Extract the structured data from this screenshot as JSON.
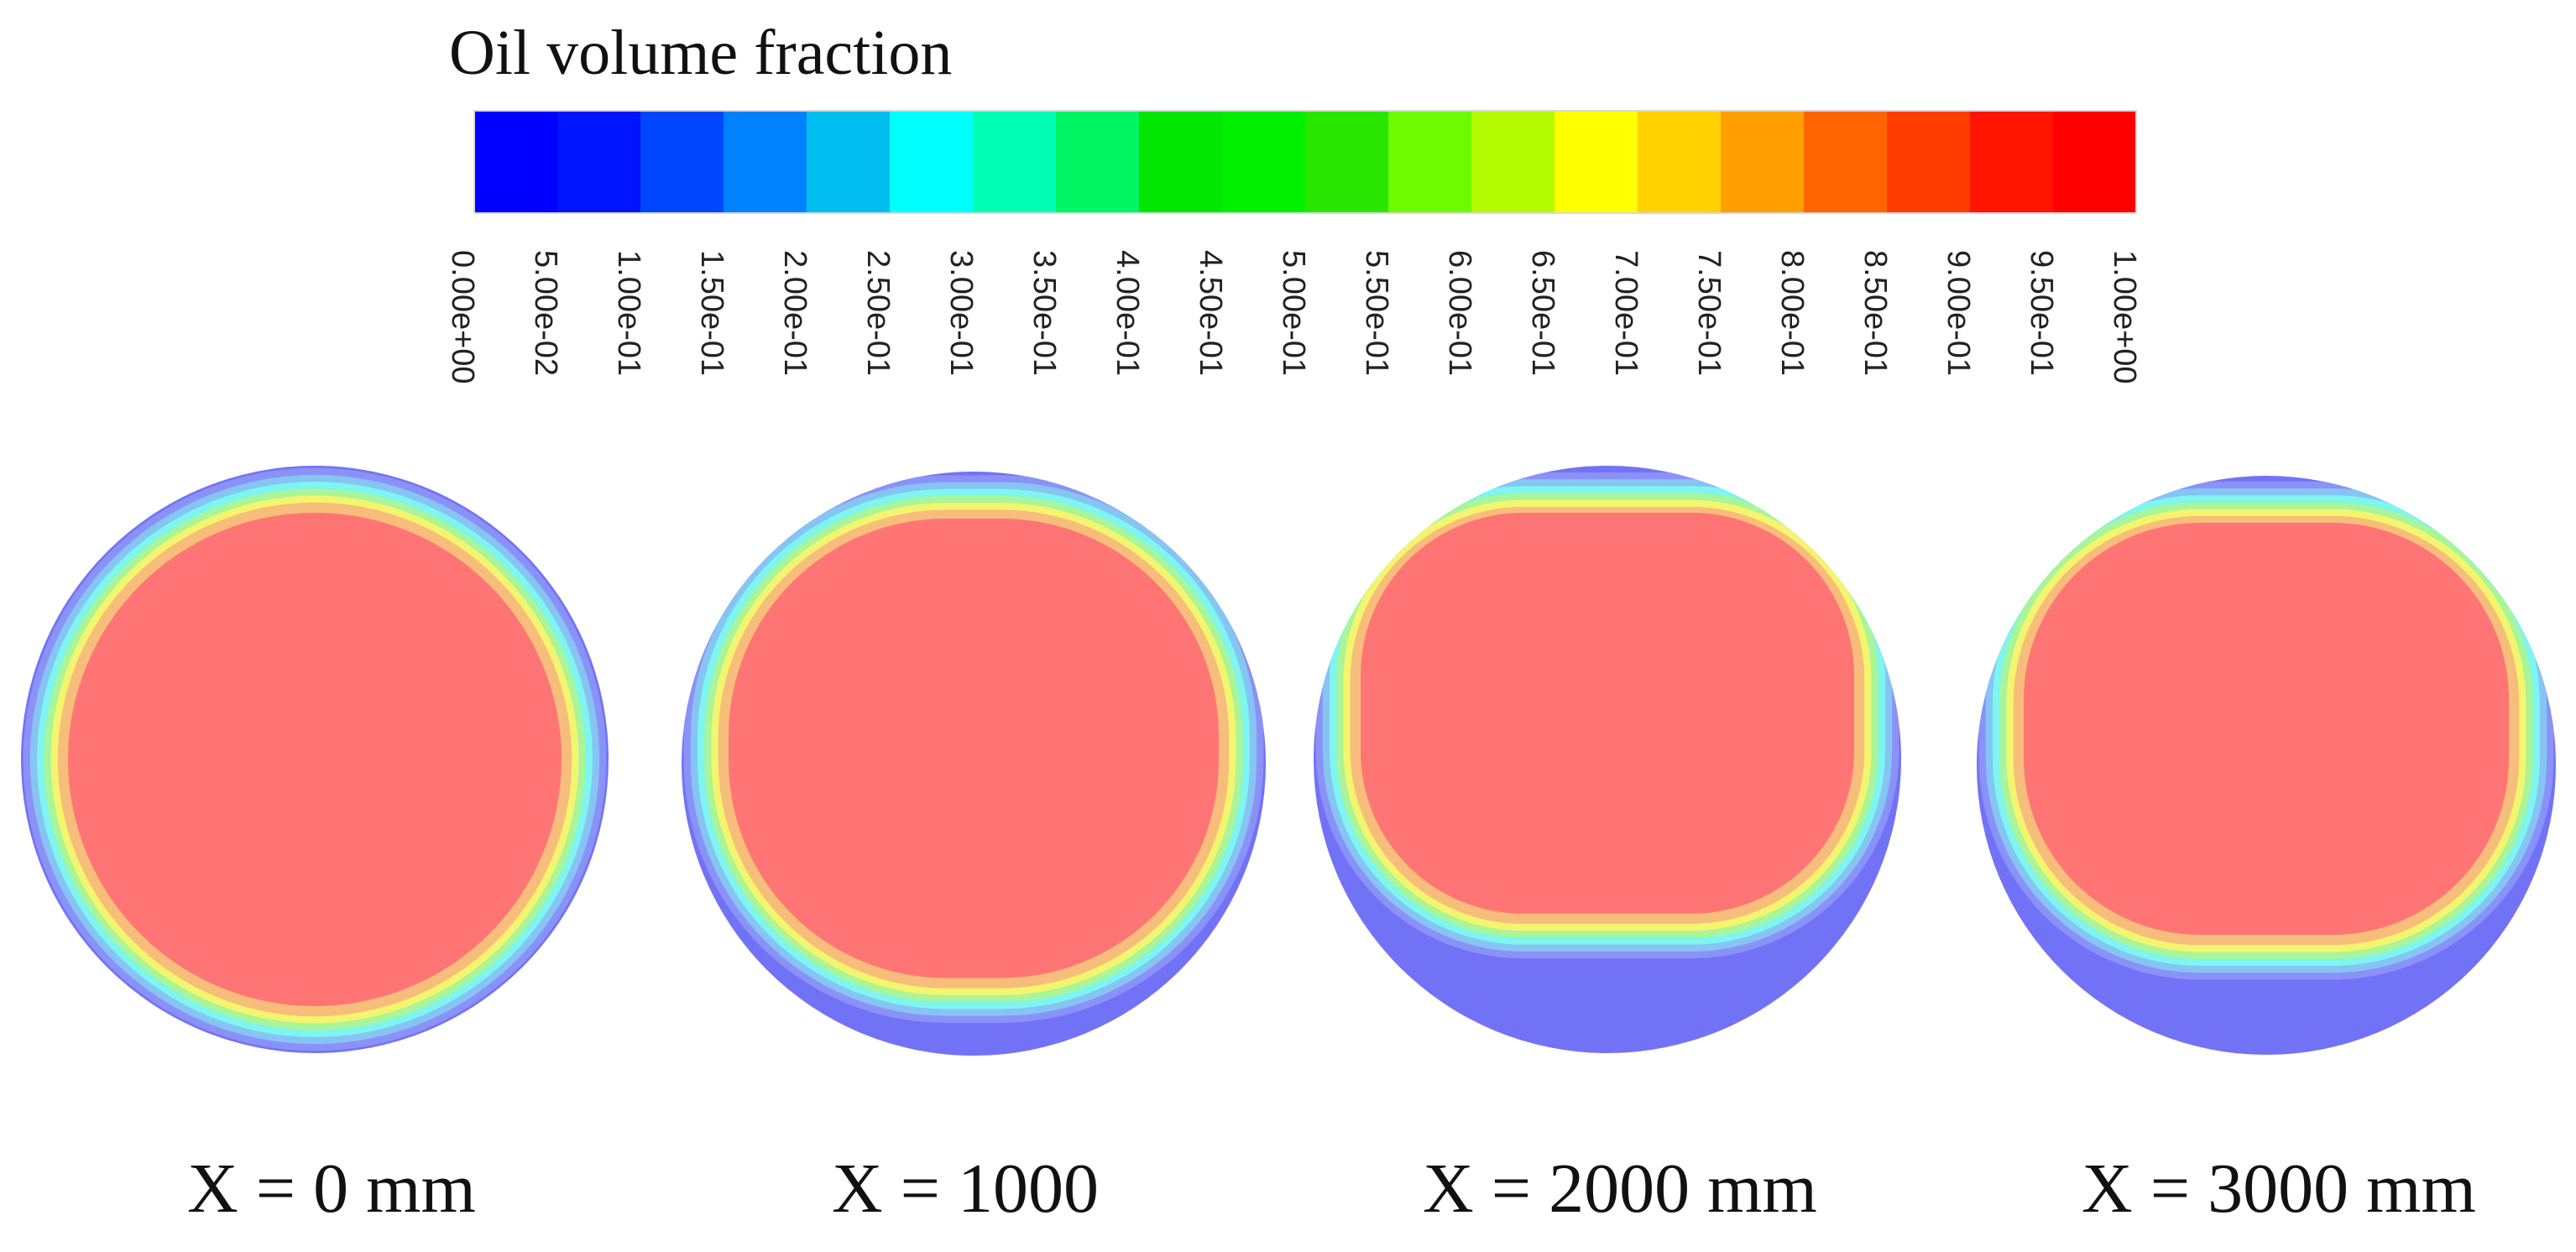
{
  "legend": {
    "title": "Oil volume fraction",
    "colors": [
      "#0000ff",
      "#0014ff",
      "#0046ff",
      "#0082ff",
      "#00bef0",
      "#00ffff",
      "#00ffb4",
      "#00f564",
      "#00e600",
      "#00f000",
      "#28e600",
      "#6efa00",
      "#b4fa00",
      "#ffff00",
      "#ffd200",
      "#ffa000",
      "#ff6400",
      "#ff3c00",
      "#ff1400",
      "#ff0000"
    ],
    "tick_labels": [
      "0.00e+00",
      "5.00e-02",
      "1.00e-01",
      "1.50e-01",
      "2.00e-01",
      "2.50e-01",
      "3.00e-01",
      "3.50e-01",
      "4.00e-01",
      "4.50e-01",
      "5.00e-01",
      "5.50e-01",
      "6.00e-01",
      "6.50e-01",
      "7.00e-01",
      "7.50e-01",
      "8.00e-01",
      "8.50e-01",
      "9.00e-01",
      "9.50e-01",
      "1.00e+00"
    ]
  },
  "sections": [
    {
      "label": "X = 0 mm",
      "water_settled_fraction": 0.0
    },
    {
      "label": "X = 1000",
      "water_settled_fraction": 0.25
    },
    {
      "label": "X = 2000 mm",
      "water_settled_fraction": 0.75
    },
    {
      "label": "X = 3000 mm",
      "water_settled_fraction": 0.6
    }
  ],
  "pale_colors": {
    "oil": "#ff7575",
    "band_orange": "#f7bd7a",
    "band_yellow": "#f4f56e",
    "band_green": "#a8f59a",
    "band_cyan": "#7ff5ef",
    "band_sky": "#86c4f4",
    "band_blue": "#8a92f8",
    "water": "#7272f7"
  }
}
